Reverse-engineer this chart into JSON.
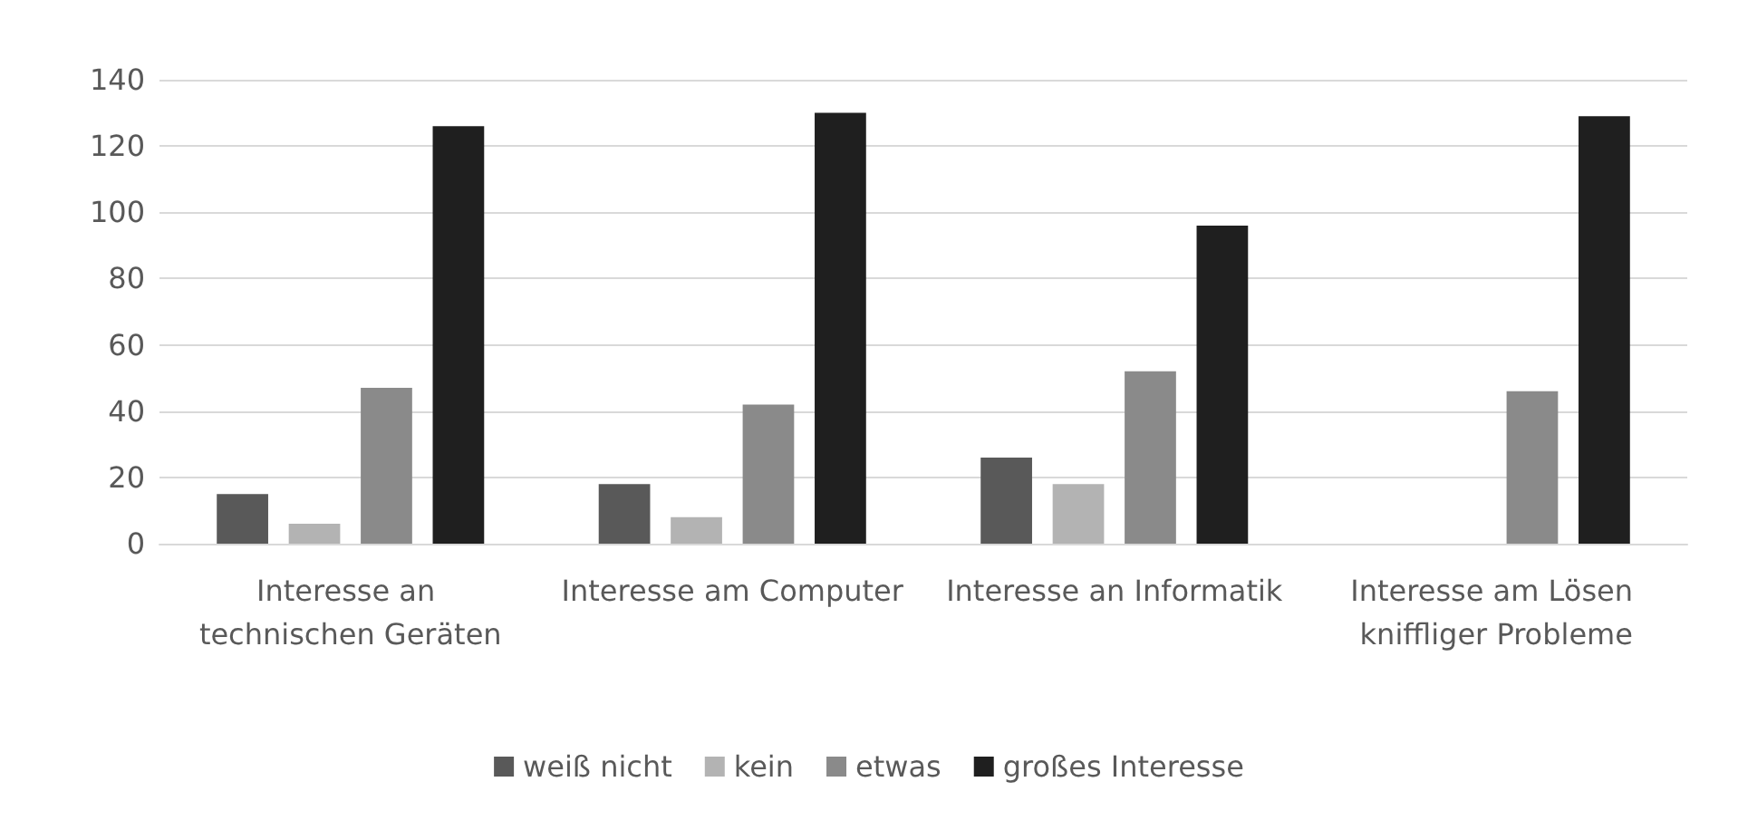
{
  "chart_data": {
    "type": "bar",
    "categories": [
      "Interesse an technischen Geräten",
      "Interesse am Computer",
      "Interesse an Informatik",
      "Interesse am Lösen kniffliger Probleme"
    ],
    "series": [
      {
        "name": "weiß nicht",
        "color": "#595959",
        "values": [
          15,
          18,
          26,
          null
        ]
      },
      {
        "name": "kein",
        "color": "#b3b3b3",
        "values": [
          6,
          8,
          18,
          null
        ]
      },
      {
        "name": "etwas",
        "color": "#8a8a8a",
        "values": [
          47,
          42,
          52,
          46
        ]
      },
      {
        "name": "großes Interesse",
        "color": "#1f1f1f",
        "values": [
          126,
          130,
          96,
          129
        ]
      }
    ],
    "ylim": [
      0,
      140
    ],
    "yticks": [
      0,
      20,
      40,
      60,
      80,
      100,
      120,
      140
    ],
    "grid": "y",
    "legend": "bottom"
  }
}
